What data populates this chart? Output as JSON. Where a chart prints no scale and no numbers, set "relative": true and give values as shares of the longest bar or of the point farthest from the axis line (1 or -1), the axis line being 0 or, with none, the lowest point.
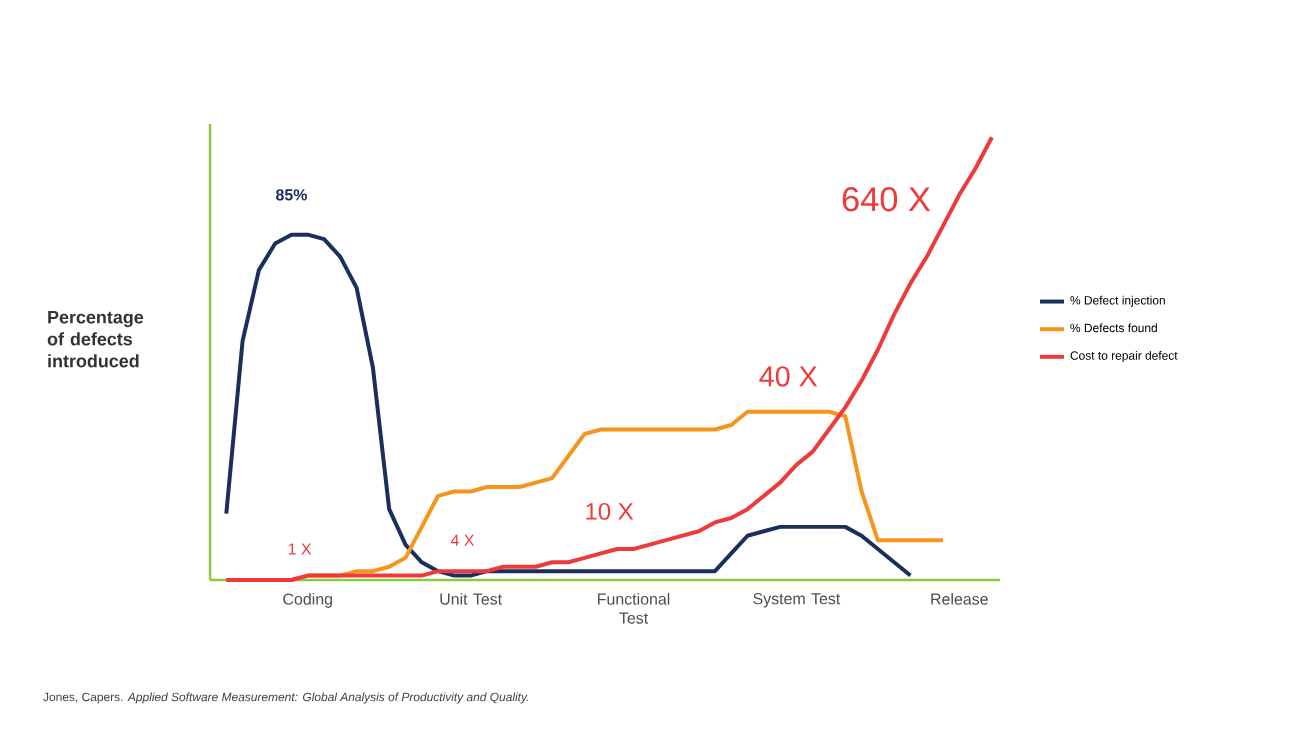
{
  "chart_data": {
    "type": "line",
    "relative": true,
    "ylabel": "Percentage of defects introduced",
    "categories": [
      null,
      null,
      null,
      null,
      null,
      "Coding",
      null,
      null,
      null,
      null,
      null,
      null,
      null,
      null,
      null,
      "Unit Test",
      null,
      null,
      null,
      null,
      null,
      null,
      null,
      null,
      null,
      "Functional Test",
      null,
      null,
      null,
      null,
      null,
      null,
      null,
      null,
      null,
      "System Test",
      null,
      null,
      null,
      null,
      null,
      null,
      null,
      null,
      null,
      "Release",
      null,
      null
    ],
    "legend": "right",
    "grid": false,
    "marker": "none",
    "line_style": "solid",
    "series": [
      {
        "name": "% Defect injection",
        "color": "#1b2f5b",
        "values": [
          0.15,
          0.54,
          0.7,
          0.76,
          0.78,
          0.78,
          0.77,
          0.73,
          0.66,
          0.48,
          0.16,
          0.08,
          0.04,
          0.02,
          0.01,
          0.01,
          0.02,
          0.02,
          0.02,
          0.02,
          0.02,
          0.02,
          0.02,
          0.02,
          0.02,
          0.02,
          0.02,
          0.02,
          0.02,
          0.02,
          0.02,
          0.06,
          0.1,
          0.11,
          0.12,
          0.12,
          0.12,
          0.12,
          0.12,
          0.1,
          0.07,
          0.04,
          0.01,
          null,
          null,
          null,
          null,
          null
        ]
      },
      {
        "name": "% Defects found",
        "color": "#f7941d",
        "values": [
          null,
          null,
          null,
          0,
          0,
          0.01,
          0.01,
          0.01,
          0.02,
          0.02,
          0.03,
          0.05,
          0.12,
          0.19,
          0.2,
          0.2,
          0.21,
          0.21,
          0.21,
          0.22,
          0.23,
          0.28,
          0.33,
          0.34,
          0.34,
          0.34,
          0.34,
          0.34,
          0.34,
          0.34,
          0.34,
          0.35,
          0.38,
          0.38,
          0.38,
          0.38,
          0.38,
          0.38,
          0.37,
          0.2,
          0.09,
          0.09,
          0.09,
          0.09,
          0.09,
          null,
          null,
          null
        ]
      },
      {
        "name": "Cost to repair defect",
        "color": "#ee3a3a",
        "values": [
          0,
          0,
          0,
          0,
          0,
          0.01,
          0.01,
          0.01,
          0.01,
          0.01,
          0.01,
          0.01,
          0.01,
          0.02,
          0.02,
          0.02,
          0.02,
          0.03,
          0.03,
          0.03,
          0.04,
          0.04,
          0.05,
          0.06,
          0.07,
          0.07,
          0.08,
          0.09,
          0.1,
          0.11,
          0.13,
          0.14,
          0.16,
          0.19,
          0.22,
          0.26,
          0.29,
          0.34,
          0.39,
          0.45,
          0.52,
          0.6,
          0.67,
          0.73,
          0.8,
          0.87,
          0.93,
          1.0
        ]
      }
    ],
    "annotations": [
      "85%",
      "1 X",
      "4 X",
      "10 X",
      "40 X",
      "640 X",
      "Jones, Capers. *Applied Software Measurement: Global Analysis of Productivity and Quality.*"
    ]
  }
}
